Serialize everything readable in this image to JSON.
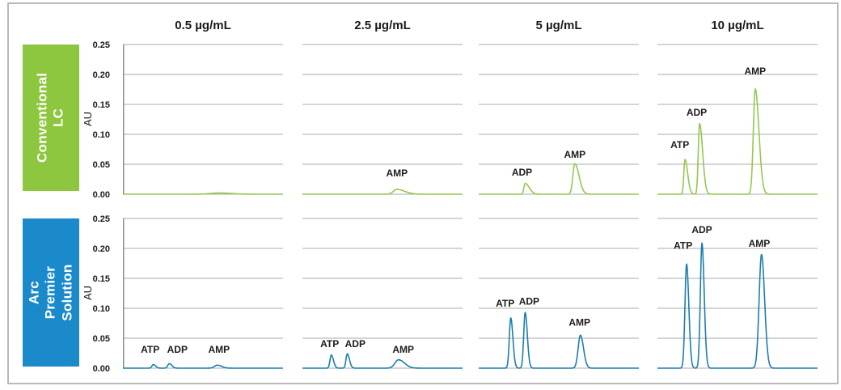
{
  "header": {
    "column_titles": [
      "0.5 µg/mL",
      "2.5 µg/mL",
      "5 µg/mL",
      "10 µg/mL"
    ]
  },
  "rows": [
    {
      "label": "Conventional LC",
      "color": "#8dc63f"
    },
    {
      "label": "Arc Premier\nSolution",
      "color": "#1b8aca"
    }
  ],
  "axis": {
    "ylabel": "AU",
    "ticks_top_to_bottom": [
      "0.25",
      "0.20",
      "0.15",
      "0.10",
      "0.05",
      "0.00"
    ],
    "ymin": 0,
    "ymax": 0.25,
    "gridline_color": "#ababab",
    "axis_line_color": "#8f8f8f"
  },
  "chart_data": [
    {
      "type": "line",
      "row": "Conventional LC",
      "concentration": "0.5 µg/mL",
      "ylabel": "AU",
      "ylim": [
        0,
        0.25
      ],
      "yticks": [
        0.0,
        0.05,
        0.1,
        0.15,
        0.2,
        0.25
      ],
      "trace_color": "#94c84f",
      "y_axis_line": true,
      "peaks": [
        {
          "analyte": "AMP",
          "x": 0.6,
          "height_au": 0.002,
          "sigma": 0.05,
          "tail": 1.5
        }
      ],
      "labels": []
    },
    {
      "type": "line",
      "row": "Conventional LC",
      "concentration": "2.5 µg/mL",
      "ylabel": "AU",
      "ylim": [
        0,
        0.25
      ],
      "yticks": [
        0.0,
        0.05,
        0.1,
        0.15,
        0.2,
        0.25
      ],
      "trace_color": "#94c84f",
      "y_axis_line": false,
      "peaks": [
        {
          "analyte": "AMP",
          "x": 0.59,
          "height_au": 0.008,
          "sigma": 0.022,
          "tail": 2.2
        }
      ],
      "labels": [
        {
          "text": "AMP",
          "x": 0.59,
          "y_au": 0.03
        }
      ]
    },
    {
      "type": "line",
      "row": "Conventional LC",
      "concentration": "5 µg/mL",
      "ylabel": "AU",
      "ylim": [
        0,
        0.25
      ],
      "yticks": [
        0.0,
        0.05,
        0.1,
        0.15,
        0.2,
        0.25
      ],
      "trace_color": "#94c84f",
      "y_axis_line": false,
      "peaks": [
        {
          "analyte": "ADP",
          "x": 0.29,
          "height_au": 0.018,
          "sigma": 0.008,
          "tail": 3.2
        },
        {
          "analyte": "AMP",
          "x": 0.6,
          "height_au": 0.051,
          "sigma": 0.012,
          "tail": 2.2
        }
      ],
      "labels": [
        {
          "text": "ADP",
          "x": 0.27,
          "y_au": 0.031
        },
        {
          "text": "AMP",
          "x": 0.6,
          "y_au": 0.061
        }
      ]
    },
    {
      "type": "line",
      "row": "Conventional LC",
      "concentration": "10 µg/mL",
      "ylabel": "AU",
      "ylim": [
        0,
        0.25
      ],
      "yticks": [
        0.0,
        0.05,
        0.1,
        0.15,
        0.2,
        0.25
      ],
      "trace_color": "#94c84f",
      "y_axis_line": false,
      "peaks": [
        {
          "analyte": "ATP",
          "x": 0.172,
          "height_au": 0.058,
          "sigma": 0.007,
          "tail": 2.4
        },
        {
          "analyte": "ADP",
          "x": 0.263,
          "height_au": 0.118,
          "sigma": 0.008,
          "tail": 2.4
        },
        {
          "analyte": "AMP",
          "x": 0.611,
          "height_au": 0.176,
          "sigma": 0.012,
          "tail": 1.9
        }
      ],
      "labels": [
        {
          "text": "ATP",
          "x": 0.14,
          "y_au": 0.077
        },
        {
          "text": "ADP",
          "x": 0.245,
          "y_au": 0.131
        },
        {
          "text": "AMP",
          "x": 0.61,
          "y_au": 0.2
        }
      ]
    },
    {
      "type": "line",
      "row": "Arc Premier Solution",
      "concentration": "0.5 µg/mL",
      "ylabel": "AU",
      "ylim": [
        0,
        0.25
      ],
      "yticks": [
        0.0,
        0.05,
        0.1,
        0.15,
        0.2,
        0.25
      ],
      "trace_color": "#1d7dae",
      "y_axis_line": true,
      "peaks": [
        {
          "analyte": "ATP",
          "x": 0.19,
          "height_au": 0.006,
          "sigma": 0.009,
          "tail": 1.6
        },
        {
          "analyte": "ADP",
          "x": 0.29,
          "height_au": 0.0075,
          "sigma": 0.01,
          "tail": 1.6
        },
        {
          "analyte": "AMP",
          "x": 0.59,
          "height_au": 0.005,
          "sigma": 0.018,
          "tail": 1.5
        }
      ],
      "labels": [
        {
          "text": "ATP",
          "x": 0.17,
          "y_au": 0.026
        },
        {
          "text": "ADP",
          "x": 0.34,
          "y_au": 0.026
        },
        {
          "text": "AMP",
          "x": 0.6,
          "y_au": 0.026
        }
      ]
    },
    {
      "type": "line",
      "row": "Arc Premier Solution",
      "concentration": "2.5 µg/mL",
      "ylabel": "AU",
      "ylim": [
        0,
        0.25
      ],
      "yticks": [
        0.0,
        0.05,
        0.1,
        0.15,
        0.2,
        0.25
      ],
      "trace_color": "#1d7dae",
      "y_axis_line": false,
      "peaks": [
        {
          "analyte": "ATP",
          "x": 0.18,
          "height_au": 0.022,
          "sigma": 0.008,
          "tail": 1.7
        },
        {
          "analyte": "ADP",
          "x": 0.28,
          "height_au": 0.024,
          "sigma": 0.008,
          "tail": 1.7
        },
        {
          "analyte": "AMP",
          "x": 0.6,
          "height_au": 0.014,
          "sigma": 0.022,
          "tail": 1.7
        }
      ],
      "labels": [
        {
          "text": "ATP",
          "x": 0.17,
          "y_au": 0.035
        },
        {
          "text": "ADP",
          "x": 0.33,
          "y_au": 0.035
        },
        {
          "text": "AMP",
          "x": 0.63,
          "y_au": 0.026
        }
      ]
    },
    {
      "type": "line",
      "row": "Arc Premier Solution",
      "concentration": "5 µg/mL",
      "ylabel": "AU",
      "ylim": [
        0,
        0.25
      ],
      "yticks": [
        0.0,
        0.05,
        0.1,
        0.15,
        0.2,
        0.25
      ],
      "trace_color": "#1d7dae",
      "y_axis_line": false,
      "peaks": [
        {
          "analyte": "ATP",
          "x": 0.2,
          "height_au": 0.084,
          "sigma": 0.009,
          "tail": 1.5
        },
        {
          "analyte": "ADP",
          "x": 0.29,
          "height_au": 0.093,
          "sigma": 0.009,
          "tail": 1.5
        },
        {
          "analyte": "AMP",
          "x": 0.635,
          "height_au": 0.055,
          "sigma": 0.014,
          "tail": 1.4
        }
      ],
      "labels": [
        {
          "text": "ATP",
          "x": 0.165,
          "y_au": 0.103
        },
        {
          "text": "ADP",
          "x": 0.315,
          "y_au": 0.106
        },
        {
          "text": "AMP",
          "x": 0.63,
          "y_au": 0.071
        }
      ]
    },
    {
      "type": "line",
      "row": "Arc Premier Solution",
      "concentration": "10 µg/mL",
      "ylabel": "AU",
      "ylim": [
        0,
        0.25
      ],
      "yticks": [
        0.0,
        0.05,
        0.1,
        0.15,
        0.2,
        0.25
      ],
      "trace_color": "#1d7dae",
      "y_axis_line": false,
      "peaks": [
        {
          "analyte": "ATP",
          "x": 0.182,
          "height_au": 0.174,
          "sigma": 0.01,
          "tail": 1.4
        },
        {
          "analyte": "ADP",
          "x": 0.278,
          "height_au": 0.209,
          "sigma": 0.01,
          "tail": 1.4
        },
        {
          "analyte": "AMP",
          "x": 0.65,
          "height_au": 0.19,
          "sigma": 0.015,
          "tail": 1.3
        }
      ],
      "labels": [
        {
          "text": "ATP",
          "x": 0.16,
          "y_au": 0.199
        },
        {
          "text": "ADP",
          "x": 0.278,
          "y_au": 0.226
        },
        {
          "text": "AMP",
          "x": 0.636,
          "y_au": 0.203
        }
      ]
    }
  ]
}
